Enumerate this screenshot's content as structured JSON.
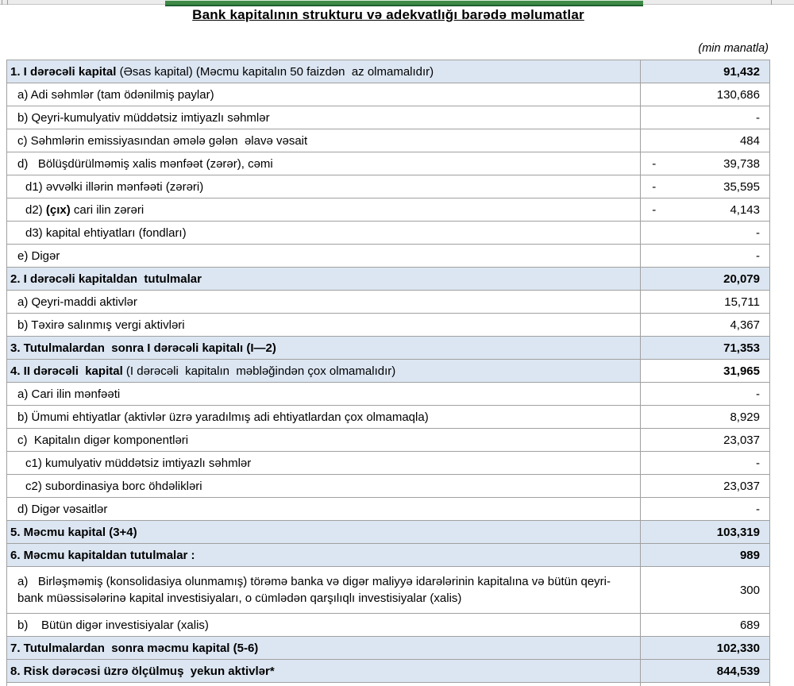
{
  "colors": {
    "hl": "#DCE6F2",
    "border": "#A0A0A0",
    "green": "#3E8A46",
    "greendark": "#1D6030"
  },
  "header": {
    "title": "Bank kapitalının strukturu və adekvatlığı barədə məlumatlar",
    "unit_note": "(min manatla)"
  },
  "table": {
    "rows": [
      {
        "parts": [
          {
            "t": "1. I dərəcəli kapital",
            "b": true
          },
          {
            "t": " (Əsas kapital) (Məcmu kapitalın 50 faizdən  az olmamalıdır)",
            "b": false
          }
        ],
        "value": "91,432",
        "minus": false,
        "lhl": true,
        "vhl": true,
        "vb": true,
        "indent": 0,
        "tall": false
      },
      {
        "parts": [
          {
            "t": "a) Adi səhmlər (tam ödənilmiş paylar)",
            "b": false
          }
        ],
        "value": "130,686",
        "minus": false,
        "lhl": false,
        "vhl": false,
        "vb": false,
        "indent": 1,
        "tall": false
      },
      {
        "parts": [
          {
            "t": "b) Qeyri-kumulyativ müddətsiz imtiyazlı səhmlər",
            "b": false
          }
        ],
        "value": "-",
        "minus": false,
        "lhl": false,
        "vhl": false,
        "vb": false,
        "indent": 1,
        "tall": false
      },
      {
        "parts": [
          {
            "t": "c) Səhmlərin emissiyasından əmələ gələn  əlavə vəsait",
            "b": false
          }
        ],
        "value": "484",
        "minus": false,
        "lhl": false,
        "vhl": false,
        "vb": false,
        "indent": 1,
        "tall": false
      },
      {
        "parts": [
          {
            "t": "d)   Bölüşdürülməmiş xalis mənfəət (zərər), cəmi",
            "b": false
          }
        ],
        "value": "39,738",
        "minus": true,
        "lhl": false,
        "vhl": false,
        "vb": false,
        "indent": 1,
        "tall": false
      },
      {
        "parts": [
          {
            "t": "d1) əvvəlki illərin mənfəəti (zərəri)",
            "b": false
          }
        ],
        "value": "35,595",
        "minus": true,
        "lhl": false,
        "vhl": false,
        "vb": false,
        "indent": 2,
        "tall": false
      },
      {
        "parts": [
          {
            "t": "d2) ",
            "b": false
          },
          {
            "t": "(çıx)",
            "b": true
          },
          {
            "t": " cari ilin zərəri",
            "b": false
          }
        ],
        "value": "4,143",
        "minus": true,
        "lhl": false,
        "vhl": false,
        "vb": false,
        "indent": 2,
        "tall": false
      },
      {
        "parts": [
          {
            "t": "d3) kapital ehtiyatları (fondları)",
            "b": false
          }
        ],
        "value": "-",
        "minus": false,
        "lhl": false,
        "vhl": false,
        "vb": false,
        "indent": 2,
        "tall": false
      },
      {
        "parts": [
          {
            "t": "e) Digər",
            "b": false
          }
        ],
        "value": "-",
        "minus": false,
        "lhl": false,
        "vhl": false,
        "vb": false,
        "indent": 1,
        "tall": false
      },
      {
        "parts": [
          {
            "t": "2. I dərəcəli kapitaldan  tutulmalar",
            "b": true
          }
        ],
        "value": "20,079",
        "minus": false,
        "lhl": true,
        "vhl": true,
        "vb": true,
        "indent": 0,
        "tall": false
      },
      {
        "parts": [
          {
            "t": "a) Qeyri-maddi aktivlər",
            "b": false
          }
        ],
        "value": "15,711",
        "minus": false,
        "lhl": false,
        "vhl": false,
        "vb": false,
        "indent": 1,
        "tall": false
      },
      {
        "parts": [
          {
            "t": "b) Təxirə salınmış vergi aktivləri",
            "b": false
          }
        ],
        "value": "4,367",
        "minus": false,
        "lhl": false,
        "vhl": false,
        "vb": false,
        "indent": 1,
        "tall": false
      },
      {
        "parts": [
          {
            "t": "3. Tutulmalardan  sonra I dərəcəli kapitalı (I—2)",
            "b": true
          }
        ],
        "value": "71,353",
        "minus": false,
        "lhl": true,
        "vhl": true,
        "vb": true,
        "indent": 0,
        "tall": false
      },
      {
        "parts": [
          {
            "t": "4. II dərəcəli  kapital",
            "b": true
          },
          {
            "t": " (I dərəcəli  kapitalın  məbləğindən çox olmamalıdır)",
            "b": false
          }
        ],
        "value": "31,965",
        "minus": false,
        "lhl": true,
        "vhl": false,
        "vb": true,
        "indent": 0,
        "tall": false
      },
      {
        "parts": [
          {
            "t": "a) Cari ilin mənfəəti",
            "b": false
          }
        ],
        "value": "-",
        "minus": false,
        "lhl": false,
        "vhl": false,
        "vb": false,
        "indent": 1,
        "tall": false
      },
      {
        "parts": [
          {
            "t": "b) Ümumi ehtiyatlar (aktivlər üzrə yaradılmış adi ehtiyatlardan çox olmamaqla)",
            "b": false
          }
        ],
        "value": "8,929",
        "minus": false,
        "lhl": false,
        "vhl": false,
        "vb": false,
        "indent": 1,
        "tall": false
      },
      {
        "parts": [
          {
            "t": "c)  Kapitalın digər komponentləri",
            "b": false
          }
        ],
        "value": "23,037",
        "minus": false,
        "lhl": false,
        "vhl": false,
        "vb": false,
        "indent": 1,
        "tall": false
      },
      {
        "parts": [
          {
            "t": "c1) kumulyativ müddətsiz imtiyazlı səhmlər",
            "b": false
          }
        ],
        "value": "-",
        "minus": false,
        "lhl": false,
        "vhl": false,
        "vb": false,
        "indent": 2,
        "tall": false
      },
      {
        "parts": [
          {
            "t": "c2) subordinasiya borc öhdəlikləri",
            "b": false
          }
        ],
        "value": "23,037",
        "minus": false,
        "lhl": false,
        "vhl": false,
        "vb": false,
        "indent": 2,
        "tall": false
      },
      {
        "parts": [
          {
            "t": "d) Digər vəsaitlər",
            "b": false
          }
        ],
        "value": "-",
        "minus": false,
        "lhl": false,
        "vhl": false,
        "vb": false,
        "indent": 1,
        "tall": false
      },
      {
        "parts": [
          {
            "t": "5. Məcmu kapital (3+4)",
            "b": true
          }
        ],
        "value": "103,319",
        "minus": false,
        "lhl": true,
        "vhl": true,
        "vb": true,
        "indent": 0,
        "tall": false
      },
      {
        "parts": [
          {
            "t": "6. Məcmu kapitaldan tutulmalar :",
            "b": true
          }
        ],
        "value": "989",
        "minus": false,
        "lhl": true,
        "vhl": true,
        "vb": true,
        "indent": 0,
        "tall": false
      },
      {
        "parts": [
          {
            "t": "a)   Birləşməmiş (konsolidasiya olunmamış) törəmə banka və digər maliyyə idarələrinin kapitalına və bütün qeyri-bank müəssisələrinə kapital investisiyaları, o cümlədən qarşılıqlı investisiyalar (xalis)",
            "b": false
          }
        ],
        "value": "300",
        "minus": false,
        "lhl": false,
        "vhl": false,
        "vb": false,
        "indent": 1,
        "tall": true
      },
      {
        "parts": [
          {
            "t": "b)    Bütün digər investisiyalar (xalis)",
            "b": false
          }
        ],
        "value": "689",
        "minus": false,
        "lhl": false,
        "vhl": false,
        "vb": false,
        "indent": 1,
        "tall": false
      },
      {
        "parts": [
          {
            "t": "7. Tutulmalardan  sonra məcmu kapital (5-6)",
            "b": true
          }
        ],
        "value": "102,330",
        "minus": false,
        "lhl": true,
        "vhl": true,
        "vb": true,
        "indent": 0,
        "tall": false
      },
      {
        "parts": [
          {
            "t": "8. Risk dərəcəsi üzrə ölçülmuş  yekun aktivlər*",
            "b": true
          }
        ],
        "value": "844,539",
        "minus": false,
        "lhl": true,
        "vhl": true,
        "vb": true,
        "indent": 0,
        "tall": false
      }
    ]
  }
}
